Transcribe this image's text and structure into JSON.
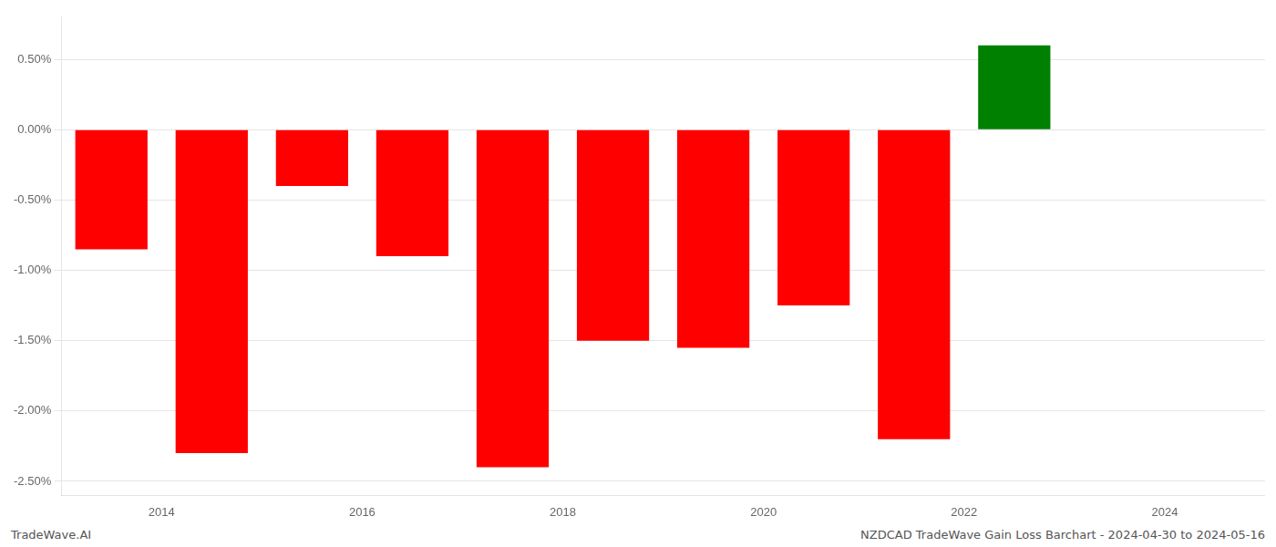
{
  "chart_data": {
    "type": "bar",
    "x": [
      2013.5,
      2014.5,
      2015.5,
      2016.5,
      2017.5,
      2018.5,
      2019.5,
      2020.5,
      2021.5,
      2022.5
    ],
    "values": [
      -0.85,
      -2.3,
      -0.4,
      -0.9,
      -2.4,
      -1.5,
      -1.55,
      -1.25,
      -2.2,
      0.6
    ],
    "colors": [
      "#ff0000",
      "#ff0000",
      "#ff0000",
      "#ff0000",
      "#ff0000",
      "#ff0000",
      "#ff0000",
      "#ff0000",
      "#ff0000",
      "#008000"
    ],
    "xlim": [
      2013.0,
      2025.0
    ],
    "xticks": [
      2014,
      2016,
      2018,
      2020,
      2022,
      2024
    ],
    "ylim": [
      -2.6,
      0.8
    ],
    "yticks": [
      {
        "value": -2.5,
        "label": "-2.50%"
      },
      {
        "value": -2.0,
        "label": "-2.00%"
      },
      {
        "value": -1.5,
        "label": "-1.50%"
      },
      {
        "value": -1.0,
        "label": "-1.00%"
      },
      {
        "value": -0.5,
        "label": "-0.50%"
      },
      {
        "value": 0.0,
        "label": "0.00%"
      },
      {
        "value": 0.5,
        "label": "0.50%"
      }
    ],
    "grid": "y",
    "annotations": [
      "TradeWave.AI",
      "NZDCAD TradeWave Gain Loss Barchart - 2024-04-30 to 2024-05-16"
    ]
  }
}
